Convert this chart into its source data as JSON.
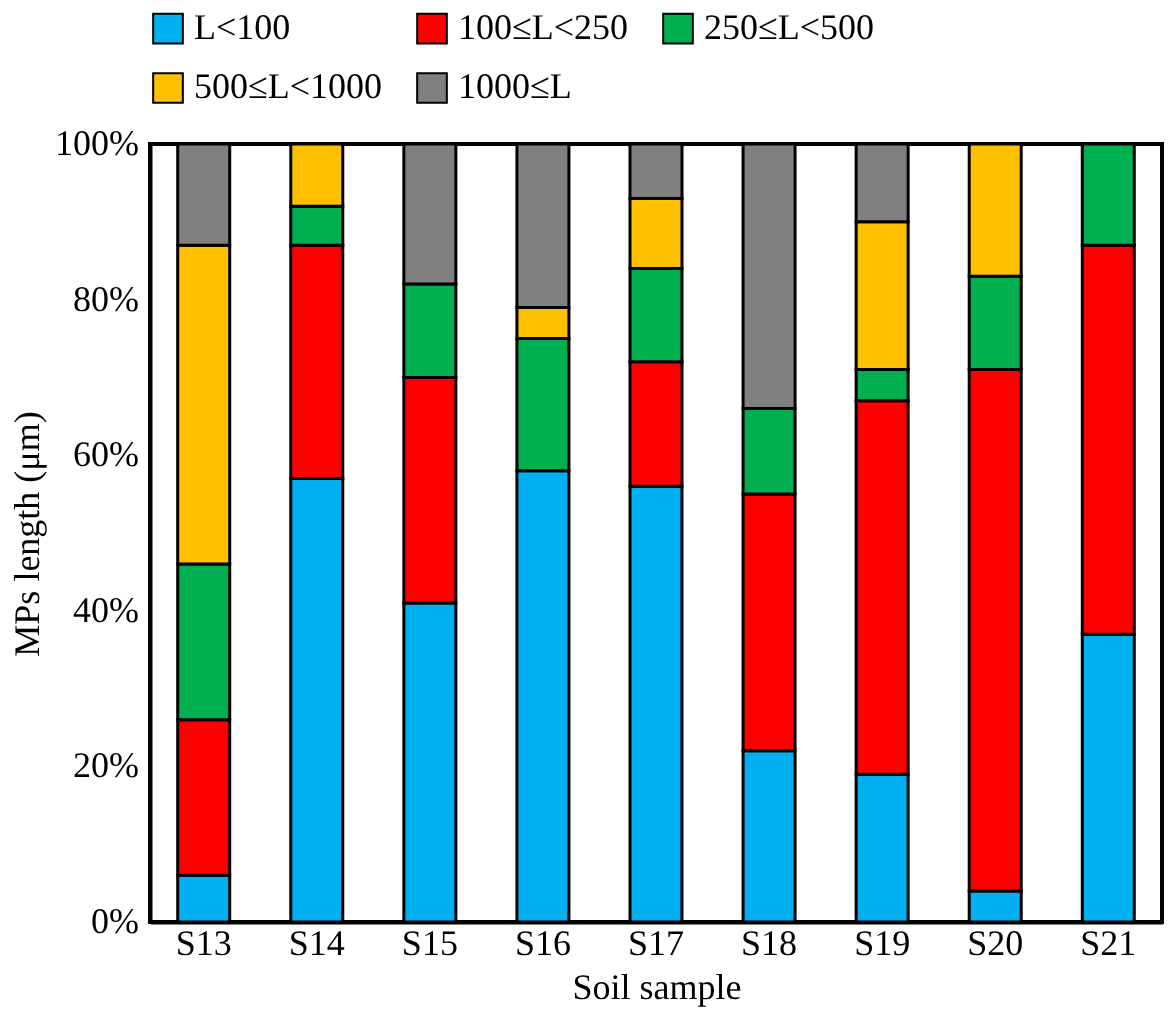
{
  "chart_data": {
    "type": "bar",
    "stacked": true,
    "xlabel": "Soil sample",
    "ylabel": "MPs length (μm)",
    "categories": [
      "S13",
      "S14",
      "S15",
      "S16",
      "S17",
      "S18",
      "S19",
      "S20",
      "S21"
    ],
    "series": [
      {
        "name": "L<100",
        "color": "#00b0f0",
        "values": [
          6,
          57,
          41,
          58,
          56,
          22,
          19,
          4,
          37
        ]
      },
      {
        "name": "100≤L<250",
        "color": "#ff0000",
        "values": [
          20,
          30,
          29,
          0,
          16,
          33,
          48,
          67,
          50
        ]
      },
      {
        "name": "250≤L<500",
        "color": "#00b050",
        "values": [
          20,
          5,
          12,
          17,
          12,
          11,
          4,
          12,
          13
        ]
      },
      {
        "name": "500≤L<1000",
        "color": "#ffc000",
        "values": [
          41,
          8,
          0,
          4,
          9,
          0,
          19,
          17,
          0
        ]
      },
      {
        "name": "1000≤L",
        "color": "#808080",
        "values": [
          13,
          0,
          18,
          21,
          7,
          34,
          10,
          0,
          0
        ]
      }
    ],
    "ylim": [
      0,
      100
    ],
    "yticks": [
      {
        "value": 0,
        "label": "0%"
      },
      {
        "value": 20,
        "label": "20%"
      },
      {
        "value": 40,
        "label": "40%"
      },
      {
        "value": 60,
        "label": "60%"
      },
      {
        "value": 80,
        "label": "80%"
      },
      {
        "value": 100,
        "label": "100%"
      }
    ],
    "grid": false,
    "legend": "top"
  }
}
